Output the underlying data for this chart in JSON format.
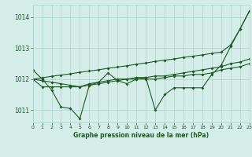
{
  "title": "Graphe pression niveau de la mer (hPa)",
  "bg_color": "#d4ede9",
  "grid_color": "#a8d4cc",
  "line_color": "#1a5c20",
  "xlim": [
    0,
    23
  ],
  "ylim": [
    1010.6,
    1014.4
  ],
  "yticks": [
    1011,
    1012,
    1013,
    1014
  ],
  "xticks": [
    0,
    1,
    2,
    3,
    4,
    5,
    6,
    7,
    8,
    9,
    10,
    11,
    12,
    13,
    14,
    15,
    16,
    17,
    18,
    19,
    20,
    21,
    22,
    23
  ],
  "s1": [
    1012.3,
    1012.0,
    1011.65,
    1011.1,
    1011.05,
    1010.72,
    1011.8,
    1011.9,
    1012.2,
    1011.95,
    1011.85,
    1012.0,
    1012.05,
    1011.0,
    1011.5,
    1011.72,
    1011.72,
    1011.72,
    1011.72,
    1012.15,
    1012.45,
    1013.05,
    1013.62,
    1014.2
  ],
  "s2": [
    1012.0,
    1011.95,
    1011.9,
    1011.85,
    1011.8,
    1011.75,
    1011.85,
    1011.9,
    1011.95,
    1012.0,
    1012.0,
    1012.05,
    1012.05,
    1012.1,
    1012.1,
    1012.15,
    1012.2,
    1012.25,
    1012.3,
    1012.35,
    1012.4,
    1012.5,
    1012.55,
    1012.65
  ],
  "s3": [
    1012.0,
    1012.04,
    1012.09,
    1012.13,
    1012.17,
    1012.22,
    1012.26,
    1012.3,
    1012.35,
    1012.39,
    1012.43,
    1012.48,
    1012.52,
    1012.57,
    1012.61,
    1012.65,
    1012.7,
    1012.74,
    1012.78,
    1012.83,
    1012.87,
    1013.1,
    1013.62,
    1014.2
  ],
  "s4": [
    1012.0,
    1011.75,
    1011.75,
    1011.75,
    1011.75,
    1011.75,
    1011.8,
    1011.85,
    1011.9,
    1011.95,
    1012.0,
    1012.0,
    1012.0,
    1012.0,
    1012.05,
    1012.1,
    1012.1,
    1012.15,
    1012.15,
    1012.2,
    1012.3,
    1012.35,
    1012.4,
    1012.5
  ]
}
